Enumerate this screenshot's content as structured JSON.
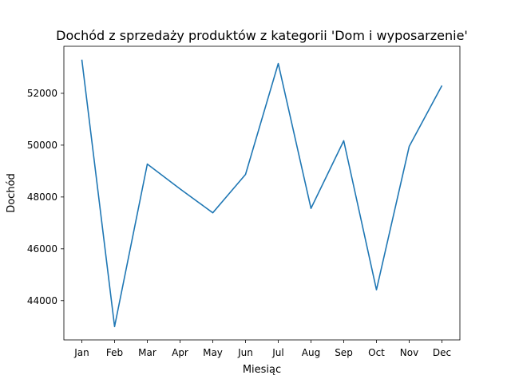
{
  "chart_data": {
    "type": "line",
    "title": "Dochód z sprzedaży produktów z kategorii 'Dom i wyposarzenie'",
    "xlabel": "Miesiąc",
    "ylabel": "Dochód",
    "categories": [
      "Jan",
      "Feb",
      "Mar",
      "Apr",
      "May",
      "Jun",
      "Jul",
      "Aug",
      "Sep",
      "Oct",
      "Nov",
      "Dec"
    ],
    "series": [
      {
        "values": [
          53300,
          43000,
          49270,
          48310,
          47390,
          48870,
          53150,
          47560,
          50170,
          44420,
          49950,
          52300
        ],
        "color": "#1f77b4"
      }
    ],
    "yticks": [
      44000,
      46000,
      48000,
      50000,
      52000
    ],
    "ytick_labels": [
      "44000",
      "46000",
      "48000",
      "50000",
      "52000"
    ],
    "ylim": [
      42485,
      53815
    ],
    "grid": false,
    "legend": "none"
  }
}
